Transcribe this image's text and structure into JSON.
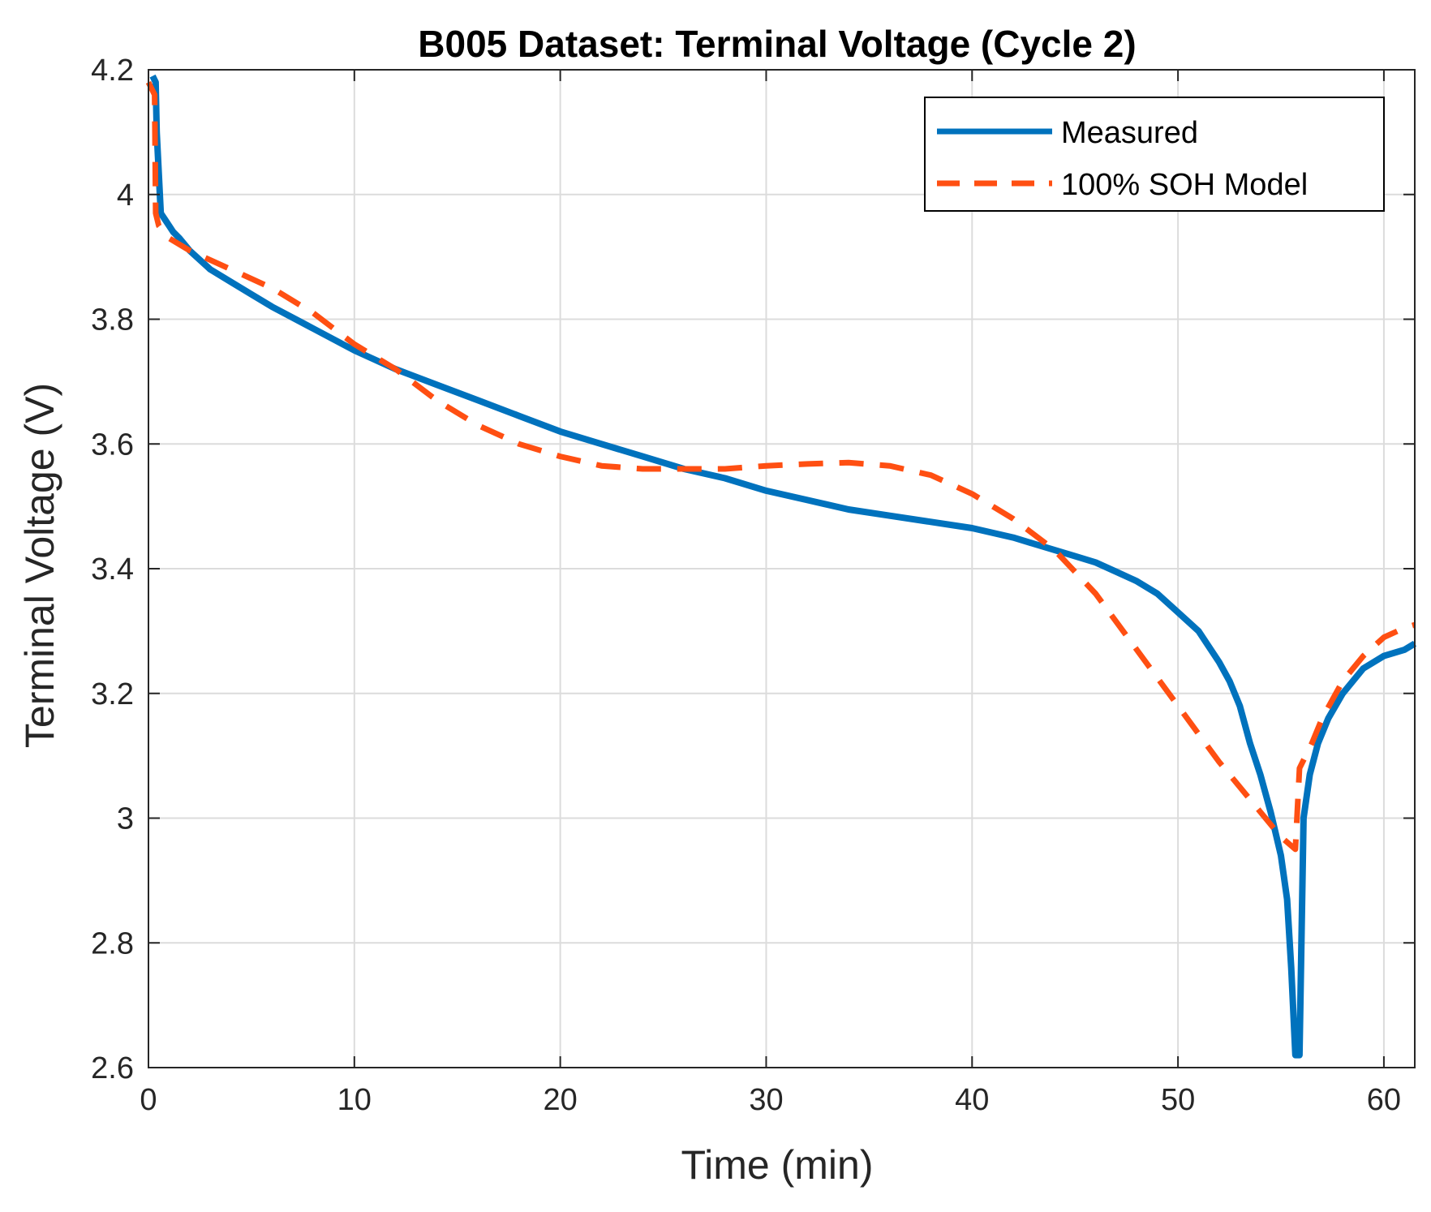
{
  "chart_data": {
    "type": "line",
    "title": "B005 Dataset: Terminal Voltage (Cycle 2)",
    "xlabel": "Time (min)",
    "ylabel": "Terminal Voltage (V)",
    "xlim": [
      0,
      61.5
    ],
    "ylim": [
      2.6,
      4.2
    ],
    "xticks": [
      0,
      10,
      20,
      30,
      40,
      50,
      60
    ],
    "xtick_labels": [
      "0",
      "10",
      "20",
      "30",
      "40",
      "50",
      "60"
    ],
    "yticks": [
      2.6,
      2.8,
      3.0,
      3.2,
      3.4,
      3.6,
      3.8,
      4.0,
      4.2
    ],
    "ytick_labels": [
      "2.6",
      "2.8",
      "3",
      "3.2",
      "3.4",
      "3.6",
      "3.8",
      "4",
      "4.2"
    ],
    "grid": true,
    "legend_position": "top-right",
    "series": [
      {
        "name": "Measured",
        "color": "#0072BD",
        "style": "solid",
        "x": [
          0.2,
          0.35,
          0.4,
          0.6,
          0.8,
          1.0,
          1.2,
          1.5,
          2,
          3,
          4,
          5,
          6,
          8,
          10,
          12,
          14,
          16,
          18,
          20,
          22,
          24,
          26,
          28,
          30,
          32,
          34,
          36,
          38,
          40,
          42,
          43,
          44,
          45,
          46,
          47,
          48,
          49,
          50,
          51,
          52,
          52.5,
          53,
          53.5,
          54,
          54.5,
          55,
          55.3,
          55.5,
          55.7,
          55.9,
          56.1,
          56.4,
          56.8,
          57.3,
          58,
          59,
          60,
          61,
          61.5
        ],
        "y": [
          4.19,
          4.18,
          4.1,
          3.97,
          3.96,
          3.95,
          3.94,
          3.93,
          3.91,
          3.88,
          3.86,
          3.84,
          3.82,
          3.785,
          3.75,
          3.72,
          3.695,
          3.67,
          3.645,
          3.62,
          3.6,
          3.58,
          3.56,
          3.545,
          3.525,
          3.51,
          3.495,
          3.485,
          3.475,
          3.465,
          3.45,
          3.44,
          3.43,
          3.42,
          3.41,
          3.395,
          3.38,
          3.36,
          3.33,
          3.3,
          3.25,
          3.22,
          3.18,
          3.12,
          3.07,
          3.01,
          2.94,
          2.87,
          2.76,
          2.62,
          2.62,
          3.0,
          3.07,
          3.12,
          3.16,
          3.2,
          3.24,
          3.26,
          3.27,
          3.28
        ]
      },
      {
        "name": "100% SOH Model",
        "color": "#FF4F12",
        "style": "dashed",
        "x": [
          0,
          0.3,
          0.35,
          0.5,
          1,
          2,
          4,
          6,
          8,
          10,
          12,
          14,
          16,
          18,
          20,
          22,
          24,
          26,
          28,
          30,
          32,
          34,
          36,
          38,
          40,
          42,
          44,
          46,
          48,
          50,
          52,
          54,
          55,
          55.7,
          55.9,
          56.5,
          57,
          58,
          59,
          60,
          61,
          61.5
        ],
        "y": [
          4.18,
          4.16,
          3.97,
          3.95,
          3.93,
          3.91,
          3.88,
          3.85,
          3.81,
          3.76,
          3.72,
          3.67,
          3.63,
          3.6,
          3.58,
          3.565,
          3.56,
          3.56,
          3.56,
          3.565,
          3.568,
          3.57,
          3.565,
          3.55,
          3.52,
          3.48,
          3.43,
          3.36,
          3.27,
          3.18,
          3.09,
          3.01,
          2.97,
          2.95,
          3.08,
          3.12,
          3.16,
          3.22,
          3.26,
          3.29,
          3.305,
          3.31
        ]
      }
    ]
  }
}
